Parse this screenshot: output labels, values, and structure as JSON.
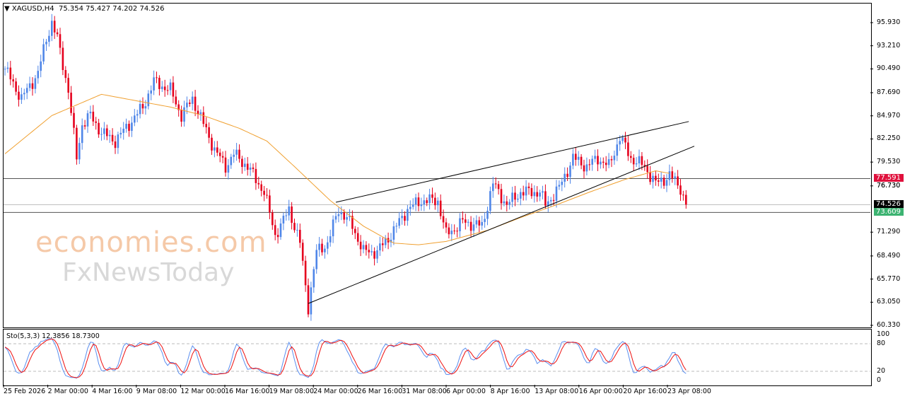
{
  "header": {
    "symbol": "XAGUSD,H4",
    "ohlc": "75.354 75.427 74.202 74.526"
  },
  "watermark": {
    "line1": "economies.com",
    "line2": "FxNewsToday"
  },
  "colors": {
    "bull": "#4f86e8",
    "bear": "#e5001d",
    "ma": "#f0a030",
    "stoch_main": "#5b8ff0",
    "stoch_signal": "#ee1010",
    "tag_red": "#e0103c",
    "tag_black": "#000000",
    "tag_green": "#3cb371"
  },
  "chart_data": {
    "type": "candlestick",
    "title": "XAGUSD,H4",
    "ylim": [
      60.33,
      95.93
    ],
    "y_ticks": [
      "95.930",
      "93.210",
      "90.490",
      "87.690",
      "84.970",
      "82.250",
      "79.530",
      "76.730",
      "71.290",
      "68.490",
      "65.770",
      "63.050",
      "60.330"
    ],
    "x_ticks": [
      "25 Feb 2026",
      "2 Mar 00:00",
      "4 Mar 16:00",
      "9 Mar 08:00",
      "12 Mar 00:00",
      "16 Mar 16:00",
      "19 Mar 08:00",
      "24 Mar 00:00",
      "26 Mar 16:00",
      "31 Mar 08:00",
      "6 Apr 00:00",
      "8 Apr 16:00",
      "13 Apr 08:00",
      "16 Apr 00:00",
      "20 Apr 16:00",
      "23 Apr 08:00"
    ],
    "bars": 248,
    "close_path": [
      [
        0,
        90.5
      ],
      [
        6,
        87
      ],
      [
        12,
        90
      ],
      [
        15,
        94
      ],
      [
        17,
        96
      ],
      [
        19,
        94
      ],
      [
        23,
        88
      ],
      [
        26,
        80
      ],
      [
        28,
        84
      ],
      [
        31,
        85
      ],
      [
        35,
        83
      ],
      [
        40,
        82
      ],
      [
        45,
        84
      ],
      [
        50,
        86
      ],
      [
        54,
        89
      ],
      [
        60,
        88
      ],
      [
        64,
        85
      ],
      [
        68,
        87
      ],
      [
        72,
        84
      ],
      [
        76,
        81
      ],
      [
        80,
        79
      ],
      [
        83,
        80.5
      ],
      [
        88,
        79
      ],
      [
        94,
        76
      ],
      [
        98,
        71
      ],
      [
        100,
        72
      ],
      [
        103,
        74
      ],
      [
        107,
        70
      ],
      [
        110,
        62.5
      ],
      [
        113,
        69
      ],
      [
        117,
        70
      ],
      [
        121,
        74
      ],
      [
        126,
        72
      ],
      [
        130,
        69
      ],
      [
        135,
        69
      ],
      [
        140,
        71
      ],
      [
        146,
        74
      ],
      [
        151,
        75
      ],
      [
        157,
        75
      ],
      [
        160,
        71
      ],
      [
        166,
        72.5
      ],
      [
        173,
        72
      ],
      [
        177,
        77
      ],
      [
        182,
        74.5
      ],
      [
        187,
        76
      ],
      [
        194,
        76
      ],
      [
        196,
        74.5
      ],
      [
        201,
        76.5
      ],
      [
        206,
        80
      ],
      [
        211,
        79
      ],
      [
        215,
        80
      ],
      [
        219,
        79
      ],
      [
        223,
        82.5
      ],
      [
        227,
        80
      ],
      [
        232,
        79
      ],
      [
        236,
        77
      ],
      [
        239,
        77.5
      ],
      [
        241,
        78
      ],
      [
        245,
        76.5
      ],
      [
        247,
        74.526
      ]
    ],
    "ma_path": [
      [
        0,
        80.5
      ],
      [
        17,
        85
      ],
      [
        35,
        87.5
      ],
      [
        60,
        86
      ],
      [
        72,
        85
      ],
      [
        85,
        83.5
      ],
      [
        95,
        82
      ],
      [
        105,
        79
      ],
      [
        118,
        75
      ],
      [
        130,
        72
      ],
      [
        141,
        70
      ],
      [
        150,
        69.8
      ],
      [
        160,
        70.2
      ],
      [
        175,
        71.5
      ],
      [
        187,
        73
      ],
      [
        200,
        74.5
      ],
      [
        212,
        76
      ],
      [
        225,
        77.5
      ],
      [
        236,
        78.5
      ],
      [
        241,
        78.2
      ]
    ],
    "hlines": [
      {
        "price": 77.591,
        "label": "77.591"
      },
      {
        "price": 74.526,
        "label": "74.526"
      },
      {
        "price": 73.609,
        "label": "73.609"
      }
    ],
    "extra_label": "76.730",
    "trendlines": [
      [
        [
          120,
          74.8
        ],
        [
          248,
          84.3
        ]
      ],
      [
        [
          110,
          62.9
        ],
        [
          250,
          81.4
        ]
      ]
    ],
    "stochastic": {
      "label": "Sto(5,3,3) 12.3856 18.7300",
      "levels": [
        100,
        80,
        20,
        0
      ],
      "level_labels": [
        "100",
        "80",
        "20",
        "0"
      ]
    }
  }
}
